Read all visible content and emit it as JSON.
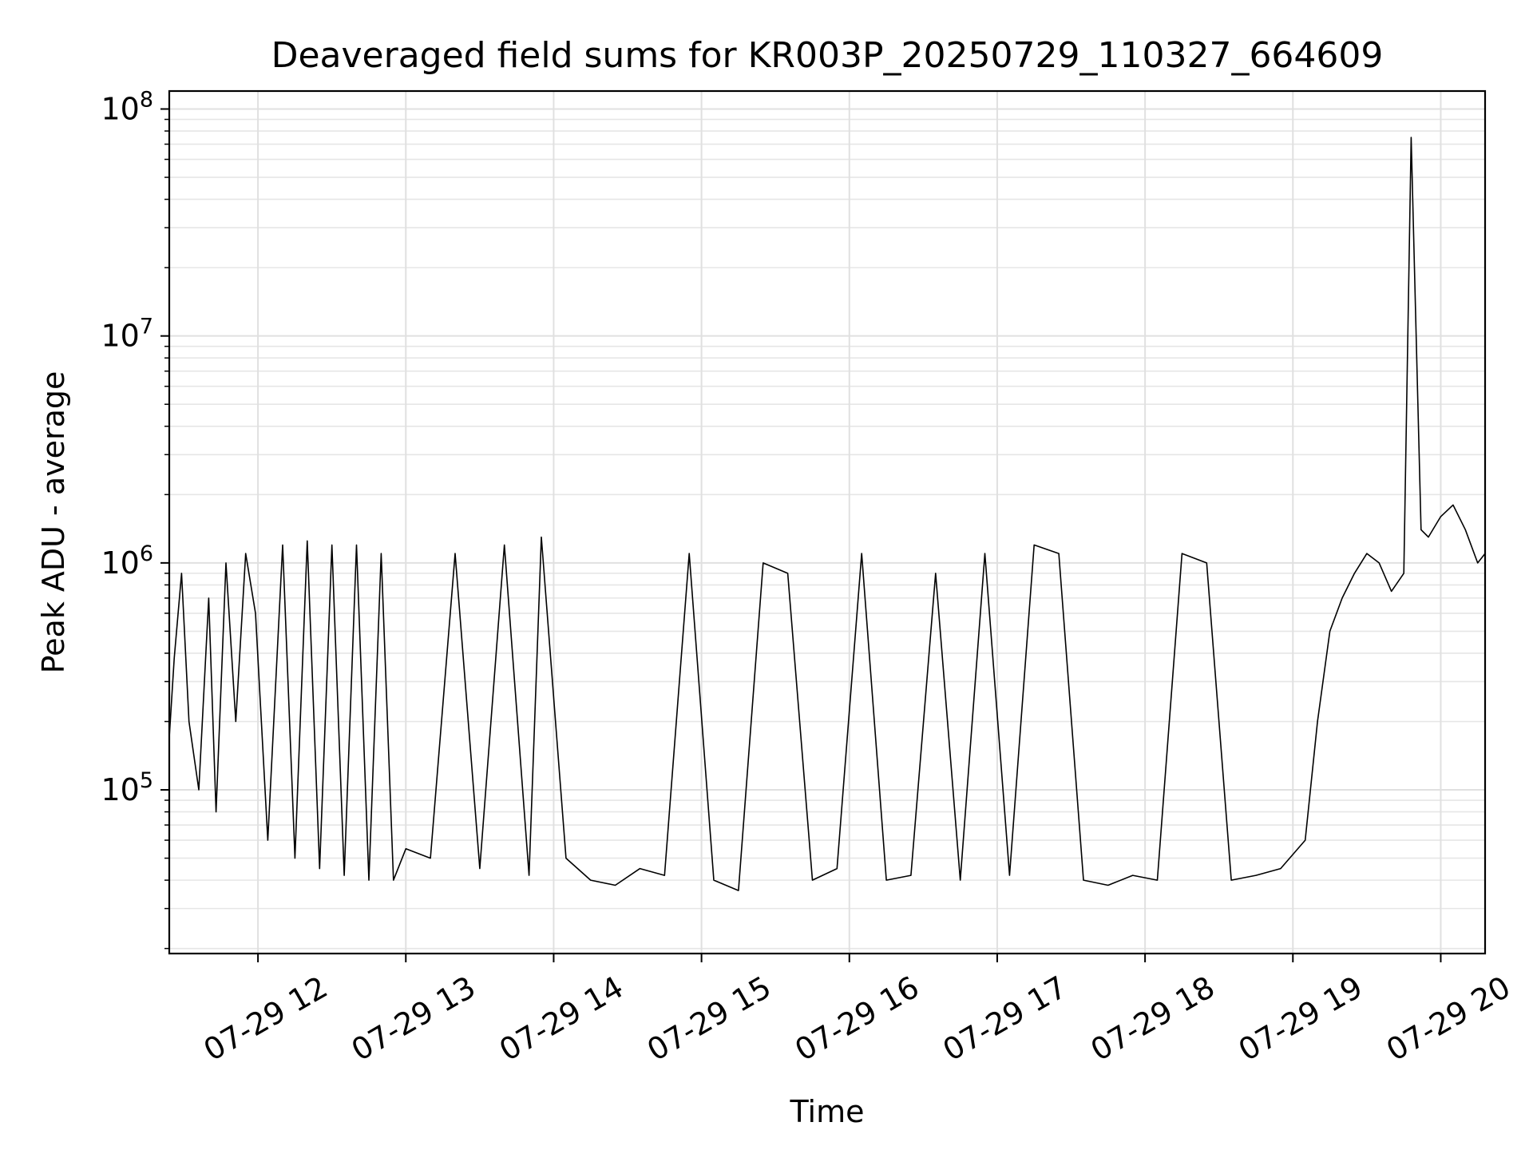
{
  "chart_data": {
    "type": "line",
    "title": "Deaveraged field sums for KR003P_20250729_110327_664609",
    "xlabel": "Time",
    "ylabel": "Peak ADU - average",
    "yscale": "log",
    "ylim": [
      19000,
      120000000
    ],
    "xlim": [
      "2025-07-29T11:24",
      "2025-07-29T20:18"
    ],
    "grid": true,
    "legend": "none",
    "series_color": "#000000",
    "x_tick_labels": [
      "07-29 12",
      "07-29 13",
      "07-29 14",
      "07-29 15",
      "07-29 16",
      "07-29 17",
      "07-29 18",
      "07-29 19",
      "07-29 20"
    ],
    "x_ticks": [
      "2025-07-29T12:00",
      "2025-07-29T13:00",
      "2025-07-29T14:00",
      "2025-07-29T15:00",
      "2025-07-29T16:00",
      "2025-07-29T17:00",
      "2025-07-29T18:00",
      "2025-07-29T19:00",
      "2025-07-29T20:00"
    ],
    "y_tick_labels": [
      {
        "base": "10",
        "exp": "5",
        "value": 100000
      },
      {
        "base": "10",
        "exp": "6",
        "value": 1000000
      },
      {
        "base": "10",
        "exp": "7",
        "value": 10000000
      },
      {
        "base": "10",
        "exp": "8",
        "value": 100000000
      }
    ],
    "series": [
      {
        "x": [
          "2025-07-29T11:24",
          "2025-07-29T11:26",
          "2025-07-29T11:29",
          "2025-07-29T11:32",
          "2025-07-29T11:36",
          "2025-07-29T11:40",
          "2025-07-29T11:43",
          "2025-07-29T11:47",
          "2025-07-29T11:51",
          "2025-07-29T11:55",
          "2025-07-29T11:59",
          "2025-07-29T12:04",
          "2025-07-29T12:10",
          "2025-07-29T12:15",
          "2025-07-29T12:20",
          "2025-07-29T12:25",
          "2025-07-29T12:30",
          "2025-07-29T12:35",
          "2025-07-29T12:40",
          "2025-07-29T12:45",
          "2025-07-29T12:50",
          "2025-07-29T12:55",
          "2025-07-29T13:00",
          "2025-07-29T13:10",
          "2025-07-29T13:20",
          "2025-07-29T13:30",
          "2025-07-29T13:40",
          "2025-07-29T13:50",
          "2025-07-29T13:55",
          "2025-07-29T14:05",
          "2025-07-29T14:15",
          "2025-07-29T14:25",
          "2025-07-29T14:35",
          "2025-07-29T14:45",
          "2025-07-29T14:55",
          "2025-07-29T15:05",
          "2025-07-29T15:15",
          "2025-07-29T15:25",
          "2025-07-29T15:35",
          "2025-07-29T15:45",
          "2025-07-29T15:55",
          "2025-07-29T16:05",
          "2025-07-29T16:15",
          "2025-07-29T16:25",
          "2025-07-29T16:35",
          "2025-07-29T16:45",
          "2025-07-29T16:55",
          "2025-07-29T17:05",
          "2025-07-29T17:15",
          "2025-07-29T17:25",
          "2025-07-29T17:35",
          "2025-07-29T17:45",
          "2025-07-29T17:55",
          "2025-07-29T18:05",
          "2025-07-29T18:15",
          "2025-07-29T18:25",
          "2025-07-29T18:35",
          "2025-07-29T18:45",
          "2025-07-29T18:55",
          "2025-07-29T19:05",
          "2025-07-29T19:10",
          "2025-07-29T19:15",
          "2025-07-29T19:20",
          "2025-07-29T19:25",
          "2025-07-29T19:30",
          "2025-07-29T19:35",
          "2025-07-29T19:40",
          "2025-07-29T19:45",
          "2025-07-29T19:48",
          "2025-07-29T19:52",
          "2025-07-29T19:55",
          "2025-07-29T20:00",
          "2025-07-29T20:05",
          "2025-07-29T20:10",
          "2025-07-29T20:15",
          "2025-07-29T20:18"
        ],
        "y": [
          170000,
          380000,
          900000,
          200000,
          100000,
          700000,
          80000,
          1000000,
          200000,
          1100000,
          600000,
          60000,
          1200000,
          50000,
          1250000,
          45000,
          1200000,
          42000,
          1200000,
          40000,
          1100000,
          40000,
          55000,
          50000,
          1100000,
          45000,
          1200000,
          42000,
          1300000,
          50000,
          40000,
          38000,
          45000,
          42000,
          1100000,
          40000,
          36000,
          1000000,
          900000,
          40000,
          45000,
          1100000,
          40000,
          42000,
          900000,
          40000,
          1100000,
          42000,
          1200000,
          1100000,
          40000,
          38000,
          42000,
          40000,
          1100000,
          1000000,
          40000,
          42000,
          45000,
          60000,
          200000,
          500000,
          700000,
          900000,
          1100000,
          1000000,
          750000,
          900000,
          75000000,
          1400000,
          1300000,
          1600000,
          1800000,
          1400000,
          1000000,
          1100000
        ]
      }
    ]
  }
}
